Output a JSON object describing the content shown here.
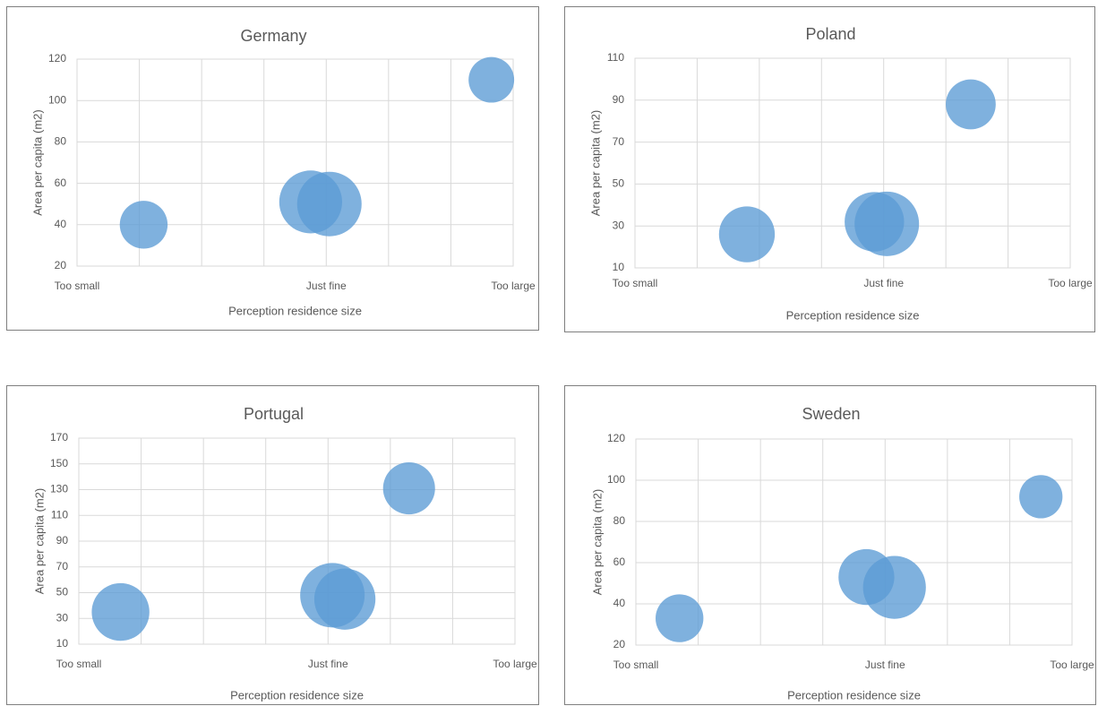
{
  "chart_data": [
    {
      "type": "bubble",
      "title": "Germany",
      "xlabel": "Perception residence size",
      "ylabel": "Area per capita (m2)",
      "xlim": [
        1,
        8
      ],
      "x_tick_labels": [
        {
          "x": 1,
          "label": "Too small"
        },
        {
          "x": 5,
          "label": "Just fine"
        },
        {
          "x": 8,
          "label": "Too large"
        }
      ],
      "ylim": [
        20,
        120
      ],
      "ystep": 20,
      "grid": true,
      "color": "#5b9bd5",
      "points": [
        {
          "x": 2.07,
          "y": 40,
          "size": 0.55
        },
        {
          "x": 4.75,
          "y": 51,
          "size": 0.95
        },
        {
          "x": 5.05,
          "y": 50,
          "size": 1.0
        },
        {
          "x": 7.65,
          "y": 110,
          "size": 0.5
        }
      ]
    },
    {
      "type": "bubble",
      "title": "Poland",
      "xlabel": "Perception residence size",
      "ylabel": "Area per capita (m2)",
      "xlim": [
        1,
        8
      ],
      "x_tick_labels": [
        {
          "x": 1,
          "label": "Too small"
        },
        {
          "x": 5,
          "label": "Just fine"
        },
        {
          "x": 8,
          "label": "Too large"
        }
      ],
      "ylim": [
        10,
        110
      ],
      "ystep": 20,
      "grid": true,
      "color": "#5b9bd5",
      "points": [
        {
          "x": 2.8,
          "y": 26,
          "size": 0.75
        },
        {
          "x": 4.85,
          "y": 32,
          "size": 0.85
        },
        {
          "x": 5.05,
          "y": 31,
          "size": 1.0
        },
        {
          "x": 6.4,
          "y": 88,
          "size": 0.6
        }
      ]
    },
    {
      "type": "bubble",
      "title": "Portugal",
      "xlabel": "Perception residence size",
      "ylabel": "Area per capita (m2)",
      "xlim": [
        1,
        8
      ],
      "x_tick_labels": [
        {
          "x": 1,
          "label": "Too small"
        },
        {
          "x": 5,
          "label": "Just fine"
        },
        {
          "x": 8,
          "label": "Too large"
        }
      ],
      "ylim": [
        10,
        170
      ],
      "ystep": 20,
      "grid": true,
      "color": "#5b9bd5",
      "points": [
        {
          "x": 1.67,
          "y": 35,
          "size": 0.8
        },
        {
          "x": 5.07,
          "y": 48,
          "size": 1.0
        },
        {
          "x": 5.27,
          "y": 45,
          "size": 0.9
        },
        {
          "x": 6.3,
          "y": 131,
          "size": 0.65
        }
      ]
    },
    {
      "type": "bubble",
      "title": "Sweden",
      "xlabel": "Perception residence size",
      "ylabel": "Area per capita (m2)",
      "xlim": [
        1,
        8
      ],
      "x_tick_labels": [
        {
          "x": 1,
          "label": "Too small"
        },
        {
          "x": 5,
          "label": "Just fine"
        },
        {
          "x": 8,
          "label": "Too large"
        }
      ],
      "ylim": [
        20,
        120
      ],
      "ystep": 20,
      "grid": true,
      "color": "#5b9bd5",
      "points": [
        {
          "x": 1.7,
          "y": 33,
          "size": 0.55
        },
        {
          "x": 4.7,
          "y": 53,
          "size": 0.75
        },
        {
          "x": 5.15,
          "y": 48,
          "size": 0.95
        },
        {
          "x": 7.5,
          "y": 92,
          "size": 0.45
        }
      ]
    }
  ]
}
